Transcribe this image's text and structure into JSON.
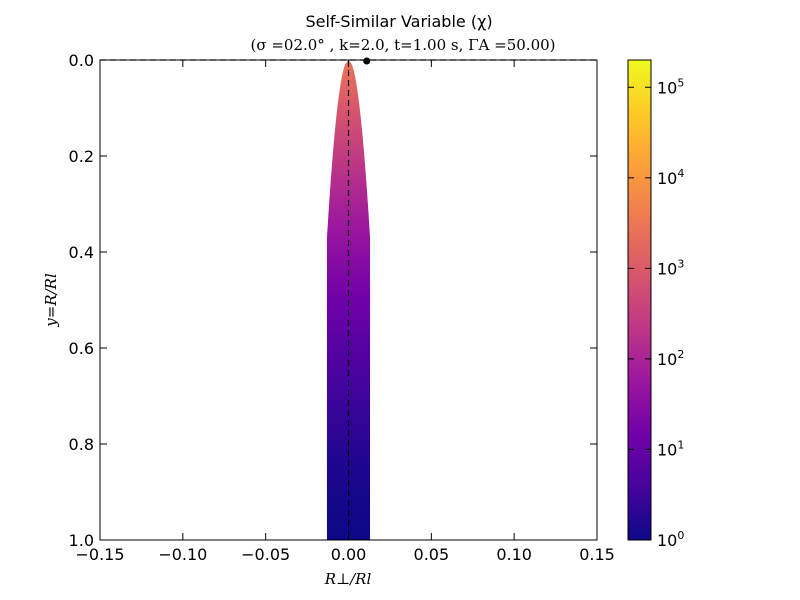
{
  "chart_data": {
    "type": "heatmap",
    "title": "Self-Similar Variable (χ)",
    "subtitle": "(σ =02.0° , k=2.0, t=1.00 s, ΓA =50.00)",
    "xlabel": "R⊥/Rl",
    "ylabel": "y=R/Rl",
    "xlim": [
      -0.15,
      0.15
    ],
    "ylim": [
      1.0,
      0.0
    ],
    "y_inverted": true,
    "x_ticks": [
      "−0.15",
      "−0.10",
      "−0.05",
      "0.00",
      "0.05",
      "0.10",
      "0.15"
    ],
    "x_tick_values": [
      -0.15,
      -0.1,
      -0.05,
      0.0,
      0.05,
      0.1,
      0.15
    ],
    "y_ticks": [
      "0.0",
      "0.2",
      "0.4",
      "0.6",
      "0.8",
      "1.0"
    ],
    "y_tick_values": [
      0.0,
      0.2,
      0.4,
      0.6,
      0.8,
      1.0
    ],
    "colorbar": {
      "scale": "log",
      "range": [
        1,
        200000
      ],
      "ticks": [
        {
          "base": "10",
          "exp": "0",
          "value": 1
        },
        {
          "base": "10",
          "exp": "1",
          "value": 10
        },
        {
          "base": "10",
          "exp": "2",
          "value": 100
        },
        {
          "base": "10",
          "exp": "3",
          "value": 1000
        },
        {
          "base": "10",
          "exp": "4",
          "value": 10000
        },
        {
          "base": "10",
          "exp": "5",
          "value": 100000
        }
      ],
      "colormap": [
        "#0d0887",
        "#46039f",
        "#7201a8",
        "#9c179e",
        "#bd3786",
        "#d8576b",
        "#ed7953",
        "#fb9f3a",
        "#fdca26",
        "#f0f921"
      ]
    },
    "region": {
      "half_width_at_base": 0.013,
      "narrows_above_y": 0.37,
      "apex_y": 0.0,
      "value_min": 1,
      "value_max": 3000
    },
    "centerline_x": 0.0,
    "markers": [
      {
        "x": 0.011,
        "y": 0.0
      }
    ],
    "grid": false
  }
}
